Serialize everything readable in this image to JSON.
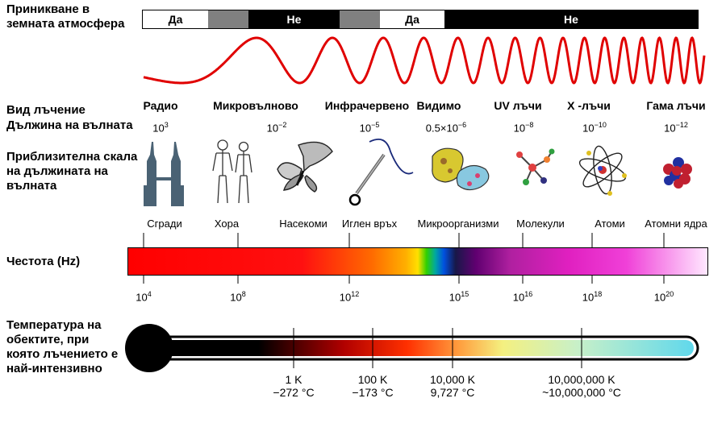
{
  "labels": {
    "atmosphere": [
      "Приникване в",
      "земната атмосфера"
    ],
    "radiation_type": "Вид лъчение",
    "wavelength": "Дължина на вълната",
    "scale": [
      "Приблизителна скала",
      "на дължината на",
      "вълната"
    ],
    "frequency": "Честота (Hz)",
    "temperature": [
      "Температура на",
      "обектите, при",
      "която лъчението е",
      "най-интензивно"
    ]
  },
  "atmosphere_bar": [
    {
      "text": "Да",
      "fill": "#ffffff"
    },
    {
      "text": "",
      "fill": "#808080"
    },
    {
      "text": "Не",
      "fill": "#000000"
    },
    {
      "text": "",
      "fill": "#808080"
    },
    {
      "text": "Да",
      "fill": "#ffffff"
    },
    {
      "text": "Не",
      "fill": "#000000"
    }
  ],
  "bands": [
    {
      "name": "Радио",
      "wl_base": "10",
      "wl_exp": "3",
      "scale": "Сгради",
      "icon": "buildings-icon"
    },
    {
      "name": "Микровълново",
      "wl_base": "10",
      "wl_exp": "−2",
      "scale": "Хора",
      "icon": "humans-icon"
    },
    {
      "name": "Инфрачервено",
      "wl_base": "10",
      "wl_exp": "−5",
      "scale": "Насекоми",
      "icon": "butterfly-icon"
    },
    {
      "name": "Видимо",
      "wl_base": "0.5×10",
      "wl_exp": "−6",
      "scale": "Иглен връх",
      "icon": "needle-icon"
    },
    {
      "name": "UV лъчи",
      "wl_base": "10",
      "wl_exp": "−8",
      "scale": "Микроорганизми",
      "icon": "microorganisms-icon"
    },
    {
      "name": "X -лъчи",
      "wl_base": "10",
      "wl_exp": "−10",
      "scale": "Молекули",
      "icon": "molecule-icon"
    },
    {
      "name": "Гама лъчи",
      "wl_base": "10",
      "wl_exp": "−12",
      "scale": "Атоми",
      "icon": "atom-icon"
    },
    {
      "name": "",
      "wl_base": "",
      "wl_exp": "",
      "scale": "Атомни ядра",
      "icon": "nucleus-icon"
    }
  ],
  "frequencies": [
    {
      "base": "10",
      "exp": "4"
    },
    {
      "base": "10",
      "exp": "8"
    },
    {
      "base": "10",
      "exp": "12"
    },
    {
      "base": "10",
      "exp": "15"
    },
    {
      "base": "10",
      "exp": "16"
    },
    {
      "base": "10",
      "exp": "18"
    },
    {
      "base": "10",
      "exp": "20"
    }
  ],
  "temperatures": [
    {
      "k": "1 K",
      "c": "−272 °C"
    },
    {
      "k": "100 K",
      "c": "−173 °C"
    },
    {
      "k": "10,000 K",
      "c": "9,727 °C"
    },
    {
      "k": "10,000,000 K",
      "c": "~10,000,000 °C"
    }
  ],
  "colors": {
    "wave": "#e00000",
    "bar_black": "#000000",
    "bar_gray": "#808080",
    "thermometer_outline": "#000000"
  }
}
